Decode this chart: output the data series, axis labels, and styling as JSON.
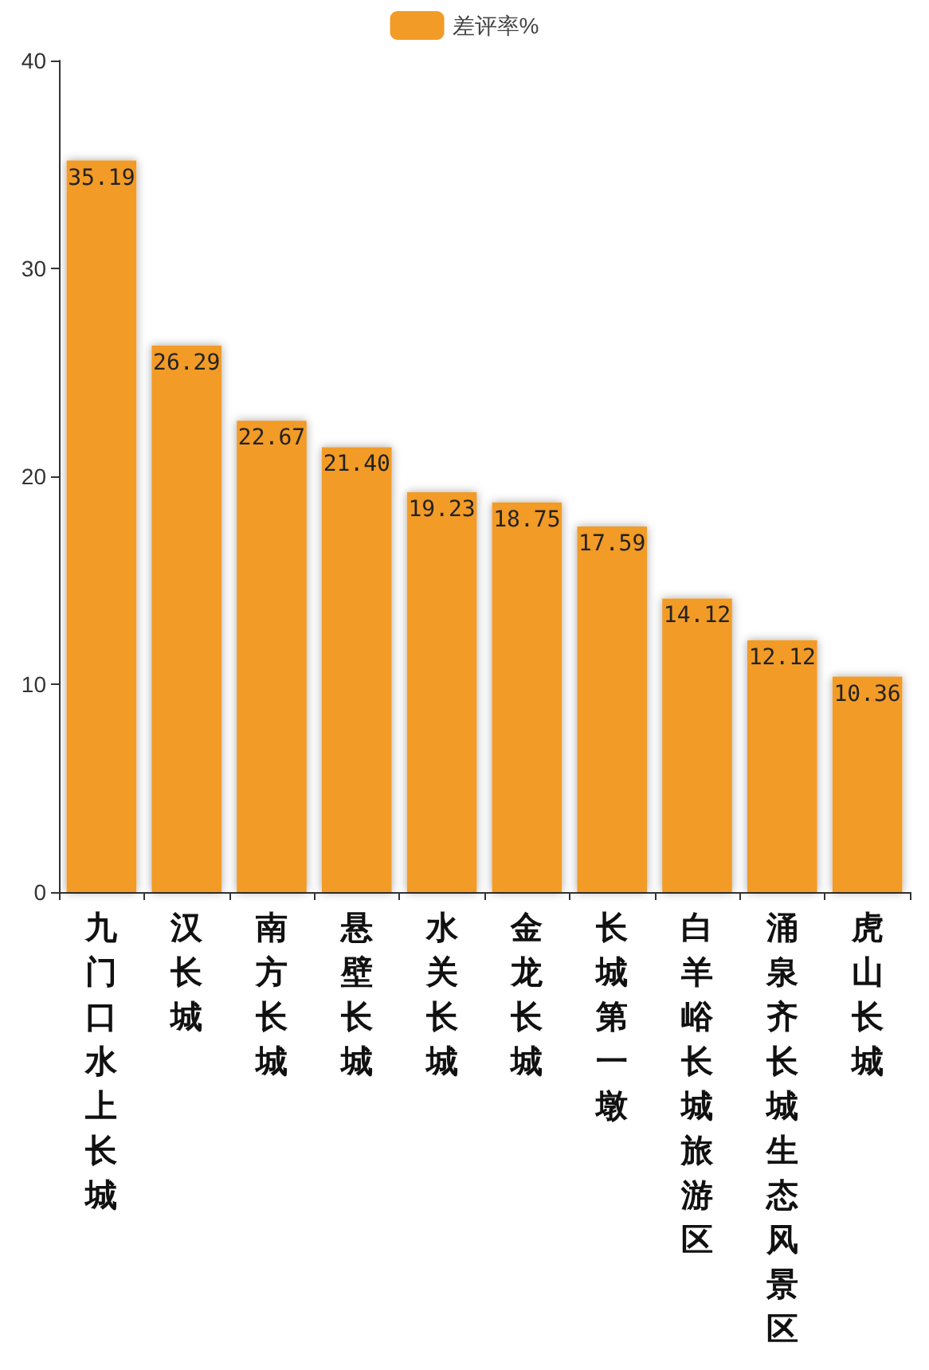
{
  "chart_data": {
    "type": "bar",
    "categories": [
      "九门口水上长城",
      "汉长城",
      "南方长城",
      "悬壁长城",
      "水关长城",
      "金龙长城",
      "长城第一墩",
      "白羊峪长城旅游区",
      "涌泉齐长城生态风景区",
      "虎山长城"
    ],
    "series": [
      {
        "name": "差评率%",
        "color": "#f29b26",
        "values": [
          35.19,
          26.29,
          22.67,
          21.4,
          19.23,
          18.75,
          17.59,
          14.12,
          12.12,
          10.36
        ],
        "value_labels": [
          "35.19",
          "26.29",
          "22.67",
          "21.40",
          "19.23",
          "18.75",
          "17.59",
          "14.12",
          "12.12",
          "10.36"
        ]
      }
    ],
    "ylim": [
      0,
      40
    ],
    "yticks": [
      0,
      10,
      20,
      30,
      40
    ],
    "grid": false,
    "legend": "top"
  }
}
